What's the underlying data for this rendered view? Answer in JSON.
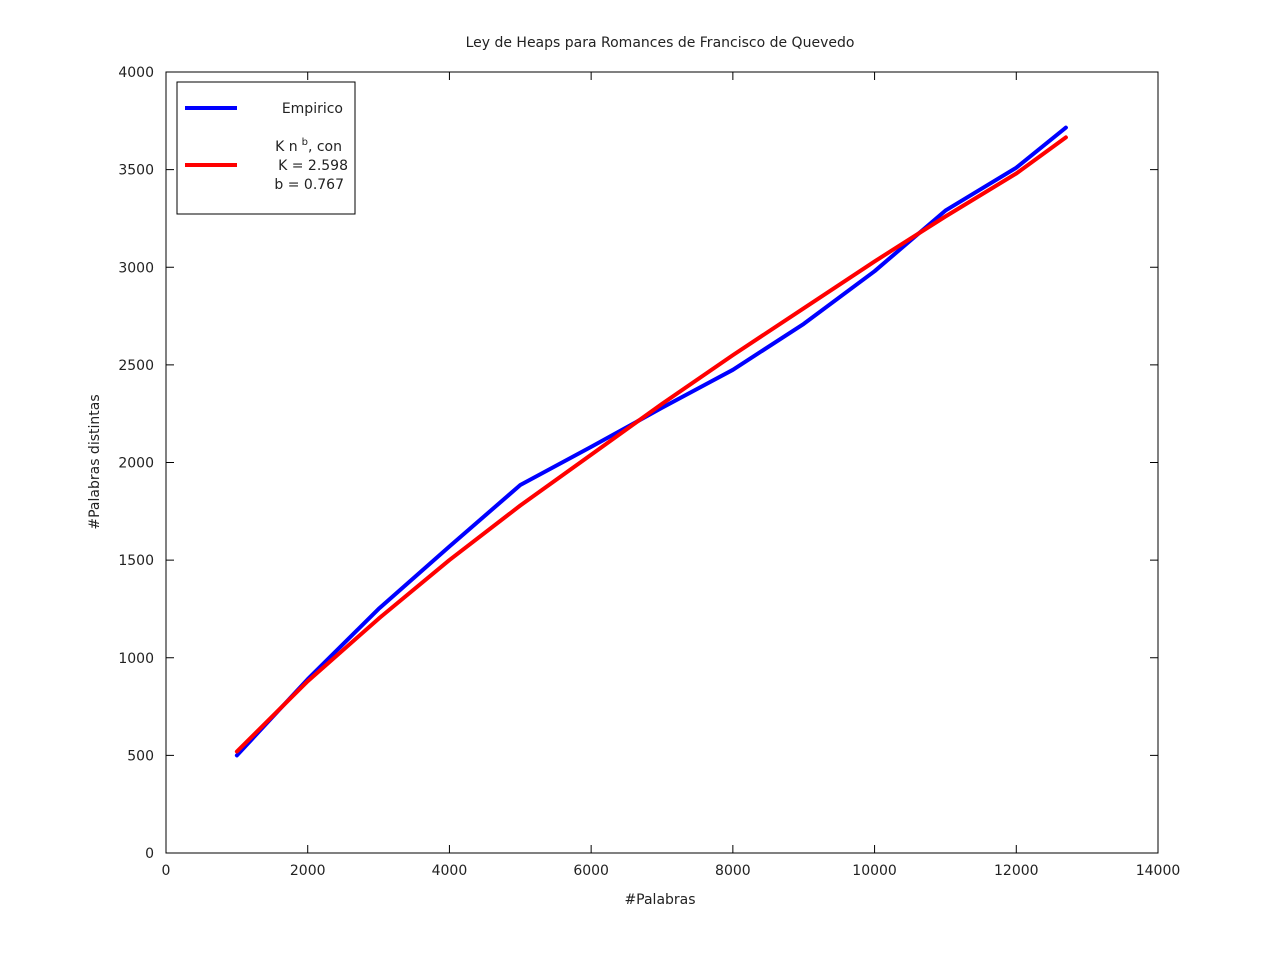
{
  "chart_data": {
    "type": "line",
    "title": "Ley de Heaps para Romances de Francisco de Quevedo",
    "xlabel": "#Palabras",
    "ylabel": "#Palabras distintas",
    "xlim": [
      0,
      14000
    ],
    "ylim": [
      0,
      4000
    ],
    "xticks": [
      0,
      2000,
      4000,
      6000,
      8000,
      10000,
      12000,
      14000
    ],
    "yticks": [
      0,
      500,
      1000,
      1500,
      2000,
      2500,
      3000,
      3500,
      4000
    ],
    "grid": false,
    "legend_position": "top-left",
    "legend": {
      "empirico_label": "Empirico",
      "fit_line1_prefix": "K n",
      "fit_line1_exp": "b",
      "fit_line1_suffix": ", con",
      "fit_line2": "K = 2.598",
      "fit_line3": "b = 0.767"
    },
    "series": [
      {
        "name": "Empirico",
        "color": "#0000ff",
        "x": [
          1000,
          2000,
          3000,
          4000,
          5000,
          6000,
          7000,
          8000,
          9000,
          10000,
          11000,
          12000,
          12700
        ],
        "y": [
          500,
          890,
          1250,
          1570,
          1885,
          2080,
          2280,
          2475,
          2710,
          2980,
          3290,
          3510,
          3715
        ]
      },
      {
        "name": "K n^b",
        "color": "#ff0000",
        "x": [
          1000,
          2000,
          3000,
          4000,
          5000,
          6000,
          7000,
          8000,
          9000,
          10000,
          11000,
          12000,
          12700
        ],
        "y": [
          520,
          880,
          1200,
          1500,
          1780,
          2040,
          2300,
          2550,
          2790,
          3030,
          3260,
          3480,
          3665
        ]
      }
    ]
  }
}
